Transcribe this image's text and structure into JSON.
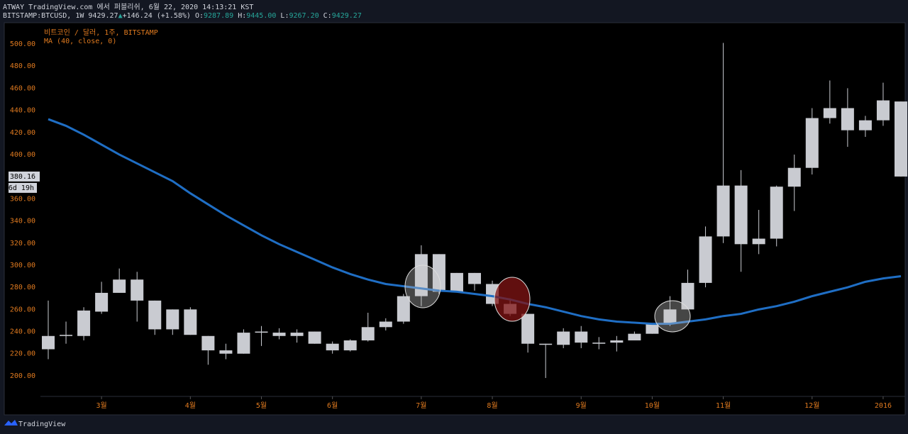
{
  "header": {
    "line1": "ATWAY TradingView.com 에서 퍼블리쉬, 6월 22, 2020 14:13:21 KST",
    "symbol": "BITSTAMP:BTCUSD, 1W 9429.27",
    "arrow": "▲",
    "change": "+146.24 (+1.58%)",
    "o_label": "O:",
    "o": "9287.89",
    "h_label": "H:",
    "h": "9445.00",
    "l_label": "L:",
    "l": "9267.20",
    "c_label": "C:",
    "c": "9429.27"
  },
  "footer": {
    "brand": "TradingView"
  },
  "chart_data": {
    "type": "candlestick",
    "title": "비트코인 / 달러, 1주, BITSTAMP",
    "categories": [
      null,
      null,
      null,
      "3월",
      null,
      null,
      null,
      null,
      "4월",
      null,
      null,
      null,
      "5월",
      null,
      null,
      null,
      "6월",
      null,
      null,
      null,
      null,
      "7월",
      null,
      null,
      null,
      "8월",
      null,
      null,
      null,
      null,
      "9월",
      null,
      null,
      null,
      "10월",
      null,
      null,
      null,
      "11월",
      null,
      null,
      null,
      null,
      "12월",
      null,
      null,
      null,
      "2016",
      null
    ],
    "open": [
      224,
      236,
      236,
      258,
      275,
      287,
      268,
      242,
      260,
      236,
      223,
      220,
      239,
      239,
      236,
      240,
      229,
      223,
      232,
      244,
      249,
      272,
      310,
      276,
      293,
      283,
      265,
      256,
      229,
      228,
      240,
      230,
      230,
      232,
      238,
      247,
      260,
      284,
      326,
      372,
      319,
      324,
      371,
      388,
      433,
      442,
      422,
      431,
      448
    ],
    "high": [
      268,
      249,
      262,
      285,
      297,
      294,
      268,
      260,
      262,
      236,
      229,
      242,
      245,
      243,
      242,
      240,
      231,
      233,
      257,
      252,
      274,
      318,
      310,
      293,
      293,
      286,
      270,
      256,
      229,
      243,
      245,
      235,
      236,
      240,
      247,
      272,
      296,
      335,
      501,
      386,
      350,
      372,
      400,
      442,
      467,
      460,
      435,
      465,
      448
    ],
    "low": [
      215,
      229,
      232,
      256,
      275,
      249,
      237,
      237,
      237,
      210,
      215,
      220,
      227,
      233,
      230,
      229,
      220,
      222,
      231,
      241,
      247,
      263,
      274,
      276,
      277,
      263,
      254,
      221,
      198,
      225,
      225,
      224,
      222,
      232,
      238,
      245,
      260,
      280,
      320,
      294,
      310,
      317,
      349,
      382,
      428,
      407,
      416,
      426,
      380
    ],
    "close": [
      236,
      237,
      259,
      275,
      287,
      268,
      242,
      260,
      237,
      223,
      220,
      239,
      240,
      236,
      239,
      229,
      223,
      232,
      244,
      249,
      272,
      310,
      276,
      293,
      283,
      265,
      256,
      229,
      228,
      240,
      230,
      229,
      232,
      238,
      247,
      260,
      284,
      326,
      372,
      319,
      324,
      371,
      388,
      433,
      442,
      422,
      431,
      449,
      380.16
    ],
    "candle_color": "#c9cbd1",
    "series": [
      {
        "name": "MA (40, close, 0)",
        "color": "#1f6ec4",
        "values": [
          432,
          426,
          418,
          409,
          400,
          392,
          384,
          376,
          365,
          355,
          345,
          336,
          327,
          319,
          312,
          305,
          298,
          292,
          287,
          283,
          281,
          279,
          277,
          276,
          274,
          272,
          269,
          265,
          262,
          258,
          254,
          251,
          249,
          248,
          247,
          247,
          249,
          251,
          254,
          256,
          260,
          263,
          267,
          272,
          276,
          280,
          285,
          288,
          290
        ]
      }
    ],
    "ylim": [
      182,
      518.6
    ],
    "yticks": [
      {
        "value": 200,
        "label": "200.00"
      },
      {
        "value": 220,
        "label": "220.00"
      },
      {
        "value": 240,
        "label": "240.00"
      },
      {
        "value": 260,
        "label": "260.00"
      },
      {
        "value": 280,
        "label": "280.00"
      },
      {
        "value": 300,
        "label": "300.00"
      },
      {
        "value": 320,
        "label": "320.00"
      },
      {
        "value": 340,
        "label": "340.00"
      },
      {
        "value": 360,
        "label": "360.00"
      },
      {
        "value": 400,
        "label": "400.00"
      },
      {
        "value": 420,
        "label": "420.00"
      },
      {
        "value": 440,
        "label": "440.00"
      },
      {
        "value": 460,
        "label": "460.00"
      },
      {
        "value": 480,
        "label": "480.00"
      },
      {
        "value": 500,
        "label": "500.00"
      }
    ],
    "last_price": 380.16,
    "countdown": "6d 19h",
    "axis_color": "#e07a1f"
  }
}
